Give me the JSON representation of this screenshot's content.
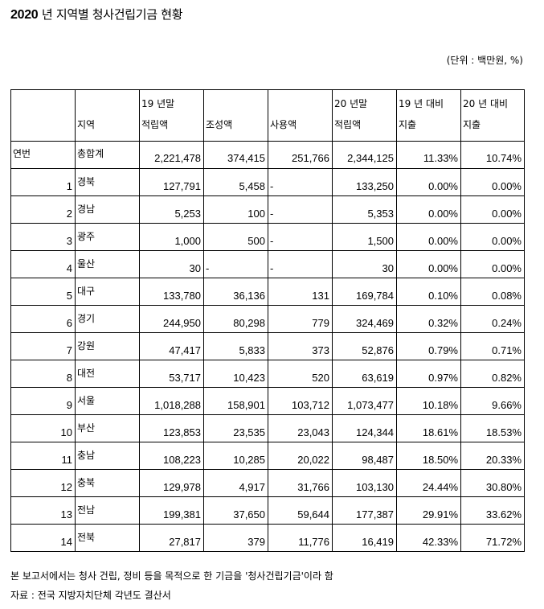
{
  "title": {
    "year": "2020",
    "rest": " 년 지역별 청사건립기금 현황"
  },
  "unit_label": "(단위 : 백만원, %)",
  "table": {
    "header": {
      "col0": "",
      "col1": "지역",
      "col2_line1": "19 년말",
      "col2_line2": "적립액",
      "col3": "조성액",
      "col4": "사용액",
      "col5_line1": "20 년말",
      "col5_line2": "적립액",
      "col6_line1": "19 년 대비",
      "col6_line2": "지출",
      "col7_line1": "20 년 대비",
      "col7_line2": "지출"
    },
    "total": {
      "label": "연번",
      "region": "총합계",
      "balance_19": "2,221,478",
      "raised": "374,415",
      "used": "251,766",
      "balance_20": "2,344,125",
      "ratio_19": "11.33%",
      "ratio_20": "10.74%"
    },
    "rows": [
      {
        "no": "1",
        "region": "경북",
        "balance_19": "127,791",
        "raised": "5,458",
        "used": "-",
        "balance_20": "133,250",
        "ratio_19": "0.00%",
        "ratio_20": "0.00%"
      },
      {
        "no": "2",
        "region": "경남",
        "balance_19": "5,253",
        "raised": "100",
        "used": "-",
        "balance_20": "5,353",
        "ratio_19": "0.00%",
        "ratio_20": "0.00%"
      },
      {
        "no": "3",
        "region": "광주",
        "balance_19": "1,000",
        "raised": "500",
        "used": "-",
        "balance_20": "1,500",
        "ratio_19": "0.00%",
        "ratio_20": "0.00%"
      },
      {
        "no": "4",
        "region": "울산",
        "balance_19": "30",
        "raised": "-",
        "used": "-",
        "balance_20": "30",
        "ratio_19": "0.00%",
        "ratio_20": "0.00%"
      },
      {
        "no": "5",
        "region": "대구",
        "balance_19": "133,780",
        "raised": "36,136",
        "used": "131",
        "balance_20": "169,784",
        "ratio_19": "0.10%",
        "ratio_20": "0.08%"
      },
      {
        "no": "6",
        "region": "경기",
        "balance_19": "244,950",
        "raised": "80,298",
        "used": "779",
        "balance_20": "324,469",
        "ratio_19": "0.32%",
        "ratio_20": "0.24%"
      },
      {
        "no": "7",
        "region": "강원",
        "balance_19": "47,417",
        "raised": "5,833",
        "used": "373",
        "balance_20": "52,876",
        "ratio_19": "0.79%",
        "ratio_20": "0.71%"
      },
      {
        "no": "8",
        "region": "대전",
        "balance_19": "53,717",
        "raised": "10,423",
        "used": "520",
        "balance_20": "63,619",
        "ratio_19": "0.97%",
        "ratio_20": "0.82%"
      },
      {
        "no": "9",
        "region": "서울",
        "balance_19": "1,018,288",
        "raised": "158,901",
        "used": "103,712",
        "balance_20": "1,073,477",
        "ratio_19": "10.18%",
        "ratio_20": "9.66%"
      },
      {
        "no": "10",
        "region": "부산",
        "balance_19": "123,853",
        "raised": "23,535",
        "used": "23,043",
        "balance_20": "124,344",
        "ratio_19": "18.61%",
        "ratio_20": "18.53%"
      },
      {
        "no": "11",
        "region": "충남",
        "balance_19": "108,223",
        "raised": "10,285",
        "used": "20,022",
        "balance_20": "98,487",
        "ratio_19": "18.50%",
        "ratio_20": "20.33%"
      },
      {
        "no": "12",
        "region": "충북",
        "balance_19": "129,978",
        "raised": "4,917",
        "used": "31,766",
        "balance_20": "103,130",
        "ratio_19": "24.44%",
        "ratio_20": "30.80%"
      },
      {
        "no": "13",
        "region": "전남",
        "balance_19": "199,381",
        "raised": "37,650",
        "used": "59,644",
        "balance_20": "177,387",
        "ratio_19": "29.91%",
        "ratio_20": "33.62%"
      },
      {
        "no": "14",
        "region": "전북",
        "balance_19": "27,817",
        "raised": "379",
        "used": "11,776",
        "balance_20": "16,419",
        "ratio_19": "42.33%",
        "ratio_20": "71.72%"
      }
    ]
  },
  "notes": {
    "definition": "본 보고서에서는 청사 건립, 정비 등을 목적으로 한 기금을 '청사건립기금'이라 함",
    "source": "자료 : 전국 지방자치단체 각년도 결산서"
  }
}
